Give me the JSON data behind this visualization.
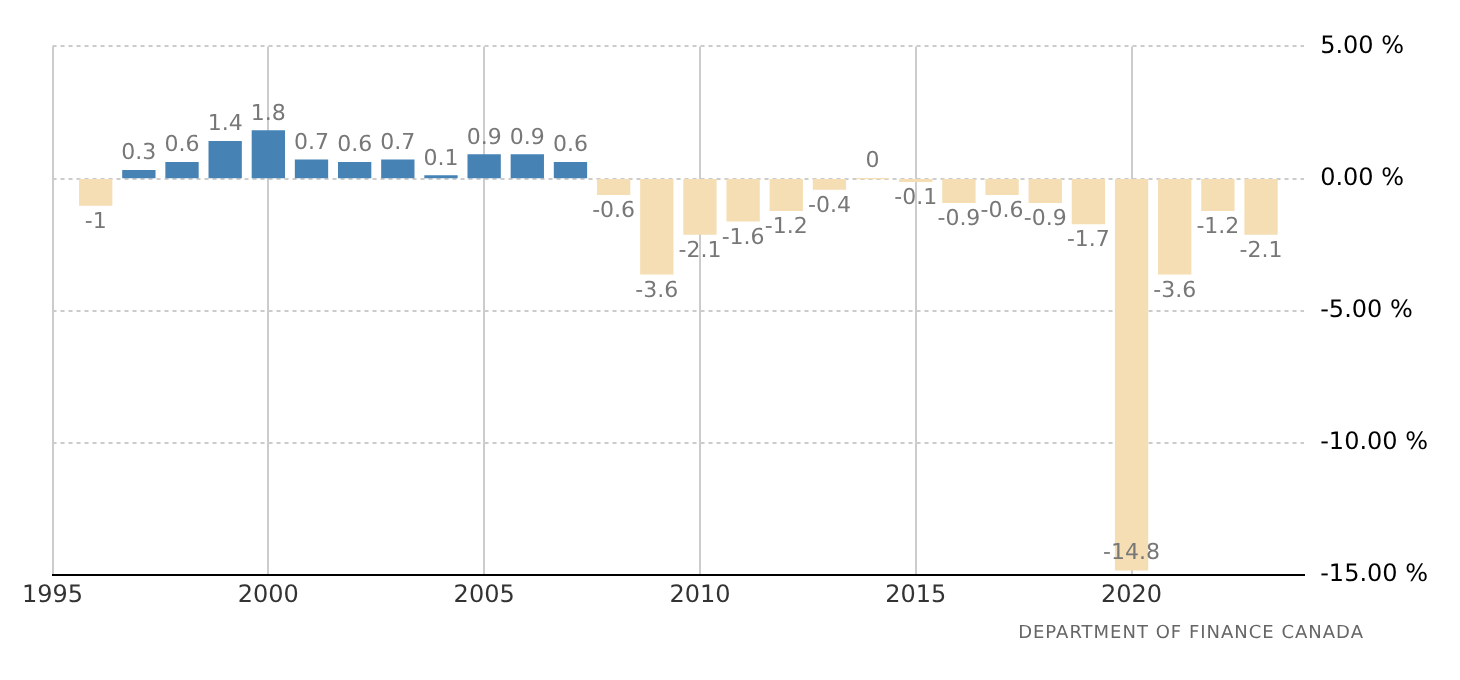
{
  "chart_data": {
    "type": "bar",
    "x": [
      1996,
      1997,
      1998,
      1999,
      2000,
      2001,
      2002,
      2003,
      2004,
      2005,
      2006,
      2007,
      2008,
      2009,
      2010,
      2011,
      2012,
      2013,
      2014,
      2015,
      2016,
      2017,
      2018,
      2019,
      2020,
      2021,
      2022,
      2023
    ],
    "values": [
      -1,
      0.3,
      0.6,
      1.4,
      1.8,
      0.7,
      0.6,
      0.7,
      0.1,
      0.9,
      0.9,
      0.6,
      -0.6,
      -3.6,
      -2.1,
      -1.6,
      -1.2,
      -0.4,
      0,
      -0.1,
      -0.9,
      -0.6,
      -0.9,
      -1.7,
      -14.8,
      -3.6,
      -1.2,
      -2.1
    ],
    "colors": [
      "#f5deb3",
      "#4682b4",
      "#4682b4",
      "#4682b4",
      "#4682b4",
      "#4682b4",
      "#4682b4",
      "#4682b4",
      "#4682b4",
      "#4682b4",
      "#4682b4",
      "#4682b4",
      "#f5deb3",
      "#f5deb3",
      "#f5deb3",
      "#f5deb3",
      "#f5deb3",
      "#f5deb3",
      "#f5deb3",
      "#f5deb3",
      "#f5deb3",
      "#f5deb3",
      "#f5deb3",
      "#f5deb3",
      "#f5deb3",
      "#f5deb3",
      "#f5deb3",
      "#f5deb3"
    ],
    "xlim": [
      1995,
      2024
    ],
    "xticks": [
      1995,
      2000,
      2005,
      2010,
      2015,
      2020
    ],
    "ylim": [
      -15,
      5
    ],
    "yticks": [
      {
        "value": 5,
        "label": "5.00 %"
      },
      {
        "value": 0,
        "label": "0.00 %"
      },
      {
        "value": -5,
        "label": "-5.00 %"
      },
      {
        "value": -10,
        "label": "-10.00 %"
      },
      {
        "value": -15,
        "label": "-15.00 %"
      }
    ],
    "grid": true,
    "data_labels": true,
    "annotations": [
      "DEPARTMENT OF FINANCE CANADA"
    ]
  }
}
